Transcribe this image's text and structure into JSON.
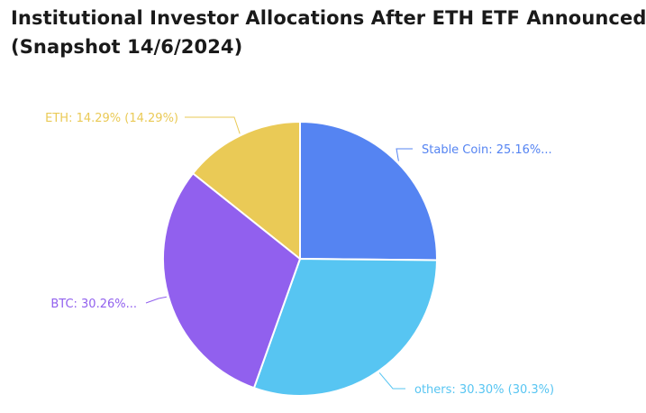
{
  "title_line1": "Institutional Investor Allocations After ETH ETF Announced",
  "title_line2": "(Snapshot 14/6/2024)",
  "chart_data": {
    "type": "pie",
    "title": "Institutional Investor Allocations After ETH ETF Announced (Snapshot 14/6/2024)",
    "slices": [
      {
        "category": "Stable Coin",
        "value": 25.16,
        "label": "Stable Coin: 25.16%...",
        "color": "#5584f2"
      },
      {
        "category": "others",
        "value": 30.3,
        "label": "others: 30.30% (30.3%)",
        "color": "#57c5f2"
      },
      {
        "category": "BTC",
        "value": 30.26,
        "label": "BTC: 30.26%...",
        "color": "#9160ee"
      },
      {
        "category": "ETH",
        "value": 14.29,
        "label": "ETH: 14.29% (14.29%)",
        "color": "#eaca56"
      }
    ]
  }
}
